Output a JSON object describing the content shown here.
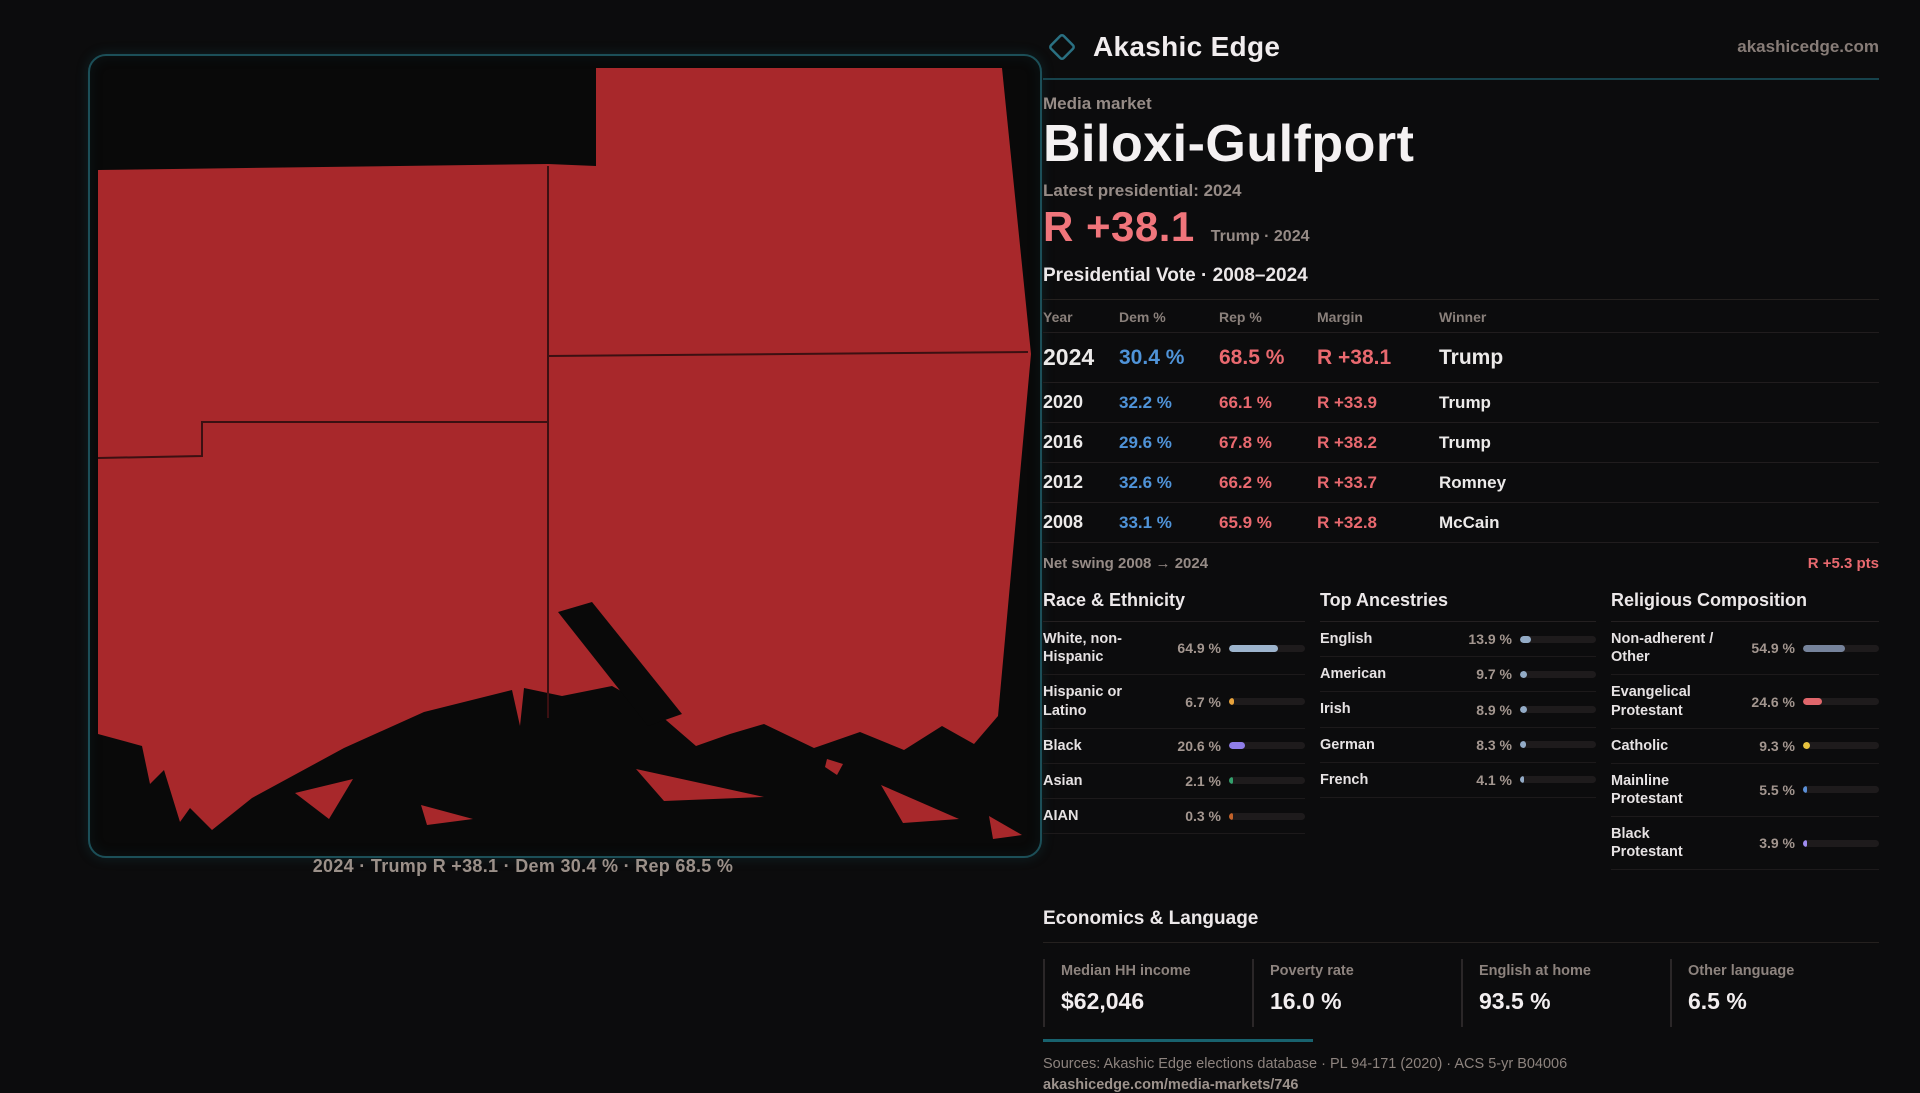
{
  "brand": {
    "name": "Akashic Edge",
    "domain": "akashicedge.com",
    "logo_icon": "diamond-outline-icon"
  },
  "header": {
    "kicker": "Media market",
    "title": "Biloxi-Gulfport",
    "latest_label": "Latest presidential: 2024",
    "latest_margin": "R +38.1",
    "latest_sub": "Trump · 2024"
  },
  "table": {
    "title": "Presidential Vote · 2008–2024",
    "columns": [
      "Year",
      "Dem %",
      "Rep %",
      "Margin",
      "Winner"
    ],
    "rows": [
      {
        "year": "2024",
        "dem": "30.4 %",
        "rep": "68.5 %",
        "margin": "R +38.1",
        "winner": "Trump"
      },
      {
        "year": "2020",
        "dem": "32.2 %",
        "rep": "66.1 %",
        "margin": "R +33.9",
        "winner": "Trump"
      },
      {
        "year": "2016",
        "dem": "29.6 %",
        "rep": "67.8 %",
        "margin": "R +38.2",
        "winner": "Trump"
      },
      {
        "year": "2012",
        "dem": "32.6 %",
        "rep": "66.2 %",
        "margin": "R +33.7",
        "winner": "Romney"
      },
      {
        "year": "2008",
        "dem": "33.1 %",
        "rep": "65.9 %",
        "margin": "R +32.8",
        "winner": "McCain"
      }
    ],
    "net_swing_label": "Net swing 2008 → 2024",
    "net_swing_value": "R +5.3 pts"
  },
  "demographics": {
    "race": {
      "title": "Race & Ethnicity",
      "rows": [
        {
          "label": "White, non-Hispanic",
          "value": "64.9 %",
          "pct": 64.9,
          "color": "#9db4cd"
        },
        {
          "label": "Hispanic or Latino",
          "value": "6.7 %",
          "pct": 6.7,
          "color": "#e8a33c"
        },
        {
          "label": "Black",
          "value": "20.6 %",
          "pct": 20.6,
          "color": "#8f7de8"
        },
        {
          "label": "Asian",
          "value": "2.1 %",
          "pct": 2.1,
          "color": "#33a06c"
        },
        {
          "label": "AIAN",
          "value": "0.3 %",
          "pct": 0.3,
          "color": "#c2622a"
        }
      ]
    },
    "ancestries": {
      "title": "Top Ancestries",
      "rows": [
        {
          "label": "English",
          "value": "13.9 %",
          "pct": 13.9,
          "color": "#93abc6"
        },
        {
          "label": "American",
          "value": "9.7 %",
          "pct": 9.7,
          "color": "#93abc6"
        },
        {
          "label": "Irish",
          "value": "8.9 %",
          "pct": 8.9,
          "color": "#93abc6"
        },
        {
          "label": "German",
          "value": "8.3 %",
          "pct": 8.3,
          "color": "#93abc6"
        },
        {
          "label": "French",
          "value": "4.1 %",
          "pct": 4.1,
          "color": "#93abc6"
        }
      ]
    },
    "religion": {
      "title": "Religious Composition",
      "rows": [
        {
          "label": "Non-adherent / Other",
          "value": "54.9 %",
          "pct": 54.9,
          "color": "#76839b"
        },
        {
          "label": "Evangelical Protestant",
          "value": "24.6 %",
          "pct": 24.6,
          "color": "#e0666b"
        },
        {
          "label": "Catholic",
          "value": "9.3 %",
          "pct": 9.3,
          "color": "#e6c23e"
        },
        {
          "label": "Mainline Protestant",
          "value": "5.5 %",
          "pct": 5.5,
          "color": "#5b8fd6"
        },
        {
          "label": "Black Protestant",
          "value": "3.9 %",
          "pct": 3.9,
          "color": "#9f8cf0"
        }
      ]
    }
  },
  "economics": {
    "title": "Economics & Language",
    "stats": [
      {
        "label": "Median HH income",
        "value": "$62,046"
      },
      {
        "label": "Poverty rate",
        "value": "16.0 %"
      },
      {
        "label": "English at home",
        "value": "93.5 %"
      },
      {
        "label": "Other language",
        "value": "6.5 %"
      }
    ]
  },
  "footer": {
    "sources": "Sources: Akashic Edge elections database · PL 94-171 (2020) · ACS 5-yr B04006",
    "permalink": "akashicedge.com/media-markets/746"
  },
  "map": {
    "caption": "2024 · Trump R +38.1 · Dem 30.4 % · Rep 68.5 %"
  },
  "theme": {
    "accent_teal": "#1c4f58",
    "dem_blue": "#4f93d8",
    "rep_red": "#e9696f",
    "margin_red": "#f0757b",
    "map_fill": "#a8282b",
    "text_muted": "#968b86"
  }
}
